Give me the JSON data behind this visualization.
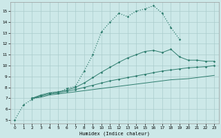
{
  "xlabel": "Humidex (Indice chaleur)",
  "bg_color": "#cce8e8",
  "grid_color": "#aacccc",
  "line_color": "#2e7d6e",
  "xlim": [
    -0.5,
    23.5
  ],
  "ylim": [
    4.7,
    15.8
  ],
  "yticks": [
    5,
    6,
    7,
    8,
    9,
    10,
    11,
    12,
    13,
    14,
    15
  ],
  "xticks": [
    0,
    1,
    2,
    3,
    4,
    5,
    6,
    7,
    8,
    9,
    10,
    11,
    12,
    13,
    14,
    15,
    16,
    17,
    18,
    19,
    20,
    21,
    22,
    23
  ],
  "line1_x": [
    0,
    1,
    2,
    3,
    4,
    5,
    6,
    7,
    8,
    9,
    10,
    11,
    12,
    13,
    14,
    15,
    16,
    17,
    18,
    19
  ],
  "line1_y": [
    5.0,
    6.4,
    6.9,
    7.2,
    7.5,
    7.5,
    7.9,
    8.1,
    9.5,
    11.0,
    13.1,
    14.0,
    14.8,
    14.5,
    15.0,
    15.2,
    15.5,
    14.8,
    13.5,
    12.4
  ],
  "line2_x": [
    2,
    3,
    4,
    5,
    6,
    7,
    8,
    9,
    10,
    11,
    12,
    13,
    14,
    15,
    16,
    17,
    18,
    19,
    20,
    21,
    22,
    23
  ],
  "line2_y": [
    7.0,
    7.3,
    7.5,
    7.6,
    7.75,
    8.0,
    8.4,
    8.9,
    9.4,
    9.85,
    10.3,
    10.7,
    11.0,
    11.3,
    11.4,
    11.2,
    11.5,
    10.8,
    10.5,
    10.5,
    10.4,
    10.4
  ],
  "line3_x": [
    2,
    3,
    4,
    5,
    6,
    7,
    8,
    9,
    10,
    11,
    12,
    13,
    14,
    15,
    16,
    17,
    18,
    19,
    20,
    21,
    22,
    23
  ],
  "line3_y": [
    7.0,
    7.2,
    7.4,
    7.5,
    7.65,
    7.8,
    8.0,
    8.2,
    8.4,
    8.6,
    8.75,
    8.9,
    9.05,
    9.2,
    9.35,
    9.5,
    9.6,
    9.7,
    9.8,
    9.85,
    9.9,
    10.0
  ],
  "line4_x": [
    2,
    3,
    4,
    5,
    6,
    7,
    8,
    9,
    10,
    11,
    12,
    13,
    14,
    15,
    16,
    17,
    18,
    19,
    20,
    21,
    22,
    23
  ],
  "line4_y": [
    7.0,
    7.1,
    7.3,
    7.4,
    7.5,
    7.6,
    7.7,
    7.8,
    7.9,
    8.0,
    8.1,
    8.2,
    8.3,
    8.4,
    8.5,
    8.6,
    8.7,
    8.75,
    8.8,
    8.9,
    9.0,
    9.1
  ]
}
